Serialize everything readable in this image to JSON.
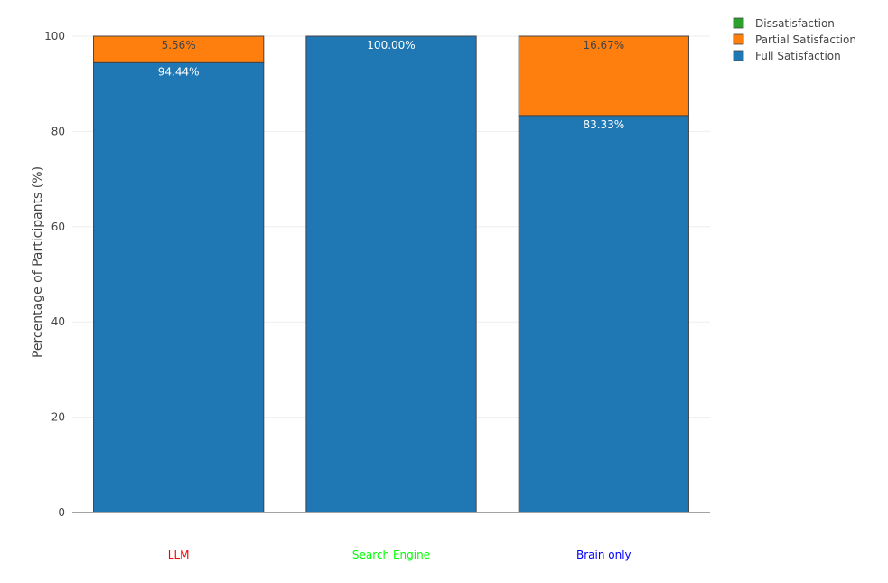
{
  "chart_data": {
    "type": "bar",
    "stacked": true,
    "categories": [
      "LLM",
      "Search Engine",
      "Brain only"
    ],
    "category_colors": [
      "#ff0000",
      "#00ff00",
      "#0000ff"
    ],
    "series": [
      {
        "name": "Full Satisfaction",
        "color": "#1f77b4",
        "values": [
          94.44,
          100.0,
          83.33
        ],
        "labels": [
          "94.44%",
          "100.00%",
          "83.33%"
        ]
      },
      {
        "name": "Partial Satisfaction",
        "color": "#ff7f0e",
        "values": [
          5.56,
          0,
          16.67
        ],
        "labels": [
          "5.56%",
          "",
          "16.67%"
        ]
      },
      {
        "name": "Dissatisfaction",
        "color": "#2ca02c",
        "values": [
          0,
          0,
          0
        ],
        "labels": [
          "",
          "",
          ""
        ]
      }
    ],
    "legend_order": [
      "Dissatisfaction",
      "Partial Satisfaction",
      "Full Satisfaction"
    ],
    "legend_position": "top-right",
    "ylabel": "Percentage of Participants (%)",
    "xlabel": "",
    "ylim": [
      0,
      100
    ],
    "yticks": [
      0,
      20,
      40,
      60,
      80,
      100
    ],
    "grid": true
  }
}
